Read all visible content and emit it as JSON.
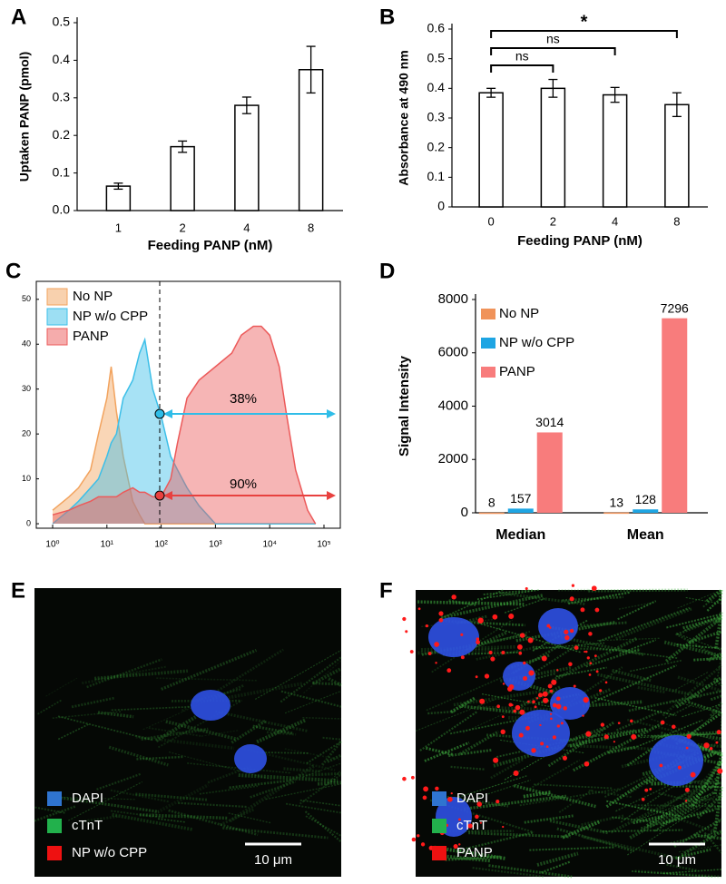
{
  "chart_data": [
    {
      "panel": "A",
      "type": "bar",
      "categories": [
        "1",
        "2",
        "4",
        "8"
      ],
      "values": [
        0.065,
        0.17,
        0.28,
        0.375
      ],
      "errors": [
        0.008,
        0.015,
        0.022,
        0.062
      ],
      "ylim": [
        0,
        0.5
      ],
      "yticks": [
        {
          "value": 0,
          "label": "0.0"
        },
        0.1,
        0.2,
        0.3,
        0.4,
        0.5
      ],
      "color": "#ffffff",
      "xlabel": "Feeding PANP (nM)",
      "ylabel": "Uptaken PANP (pmol)"
    },
    {
      "panel": "B",
      "type": "bar",
      "categories": [
        "0",
        "2",
        "4",
        "8"
      ],
      "values": [
        0.385,
        0.4,
        0.378,
        0.345
      ],
      "errors": [
        0.015,
        0.03,
        0.025,
        0.04
      ],
      "ylim": [
        0,
        0.6
      ],
      "yticks": [
        0,
        0.1,
        0.2,
        0.3,
        0.4,
        0.5,
        0.6
      ],
      "color": "#ffffff",
      "xlabel": "Feeding PANP (nM)",
      "ylabel": "Absorbance at 490 nm",
      "annotations": [
        "ns",
        "ns",
        "*"
      ]
    },
    {
      "panel": "C",
      "type": "area",
      "xscale": "log",
      "x": [
        1,
        2,
        3,
        5,
        7,
        10,
        12,
        15,
        20,
        30,
        40,
        50,
        70,
        100,
        150,
        200,
        300,
        500,
        1000,
        2000,
        3000,
        5000,
        7000,
        10000,
        15000,
        20000,
        30000,
        50000,
        70000
      ],
      "series": [
        {
          "name": "No NP",
          "color": "#f2a35e",
          "values": [
            3,
            6,
            8,
            12,
            20,
            28,
            35,
            25,
            15,
            5,
            2,
            0,
            0,
            0,
            0,
            0,
            0,
            0,
            0,
            0,
            0,
            0,
            0,
            0,
            0,
            0,
            0,
            0,
            0
          ]
        },
        {
          "name": "NP w/o CPP",
          "color": "#3cbfe8",
          "values": [
            0,
            3,
            5,
            8,
            10,
            15,
            18,
            20,
            28,
            32,
            38,
            41,
            30,
            24,
            15,
            12,
            8,
            4,
            0,
            0,
            0,
            0,
            0,
            0,
            0,
            0,
            0,
            0,
            0
          ]
        },
        {
          "name": "PANP",
          "color": "#ec5a5a",
          "values": [
            2,
            3,
            4,
            5,
            6,
            6,
            6,
            6,
            7,
            8,
            7,
            7,
            6,
            6,
            10,
            18,
            28,
            32,
            35,
            38,
            42,
            44,
            44,
            42,
            35,
            25,
            12,
            3,
            0
          ]
        }
      ],
      "xlim": [
        0.5,
        200000
      ],
      "ylim": [
        -1,
        54
      ],
      "xticks": [
        {
          "value": 1,
          "label": "10⁰"
        },
        {
          "value": 10,
          "label": "10¹"
        },
        {
          "value": 100,
          "label": "10²"
        },
        {
          "value": 1000,
          "label": "10³"
        },
        {
          "value": 10000,
          "label": "10⁴"
        },
        {
          "value": 100000,
          "label": "10⁵"
        }
      ],
      "yticks": [
        0,
        10,
        20,
        30,
        40,
        50
      ],
      "legend": "upper left",
      "annotations": [
        "38%",
        "90%"
      ]
    },
    {
      "panel": "D",
      "type": "bar",
      "categories": [
        "Median",
        "Mean"
      ],
      "series": [
        {
          "name": "No NP",
          "color": "#f0935a",
          "values": [
            8,
            13
          ]
        },
        {
          "name": "NP w/o CPP",
          "color": "#1ea5e3",
          "values": [
            157,
            128
          ]
        },
        {
          "name": "PANP",
          "color": "#f87c7c",
          "values": [
            3014,
            7296
          ]
        }
      ],
      "ylim": [
        0,
        8000
      ],
      "yticks": [
        0,
        2000,
        4000,
        6000,
        8000
      ],
      "ylabel": "Signal Intensity",
      "legend": "upper left"
    }
  ],
  "images": [
    {
      "panel": "E",
      "legend": [
        {
          "name": "DAPI",
          "color": "#2f74d0"
        },
        {
          "name": "cTnT",
          "color": "#22b14c"
        },
        {
          "name": "NP w/o CPP",
          "color": "#ee1111"
        }
      ],
      "scale_bar": "10 μm"
    },
    {
      "panel": "F",
      "legend": [
        {
          "name": "DAPI",
          "color": "#2f74d0"
        },
        {
          "name": "cTnT",
          "color": "#22b14c"
        },
        {
          "name": "PANP",
          "color": "#ee1111"
        }
      ],
      "scale_bar": "10 μm"
    }
  ]
}
